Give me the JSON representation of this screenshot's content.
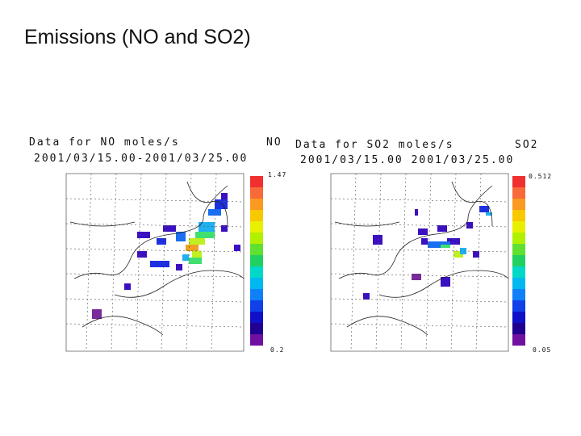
{
  "header": {
    "title": "Emissions (NO and SO2)"
  },
  "panels": [
    {
      "caption": "Data for NO moles/s",
      "species": "NO",
      "period": "2001/03/15.00-2001/03/25.00",
      "scale_max": "1.47",
      "scale_min": "0.2"
    },
    {
      "caption": "Data for SO2 moles/s",
      "species": "SO2",
      "period": "2001/03/15.00 2001/03/25.00",
      "scale_max": "0.512",
      "scale_min": "0.05"
    }
  ]
}
